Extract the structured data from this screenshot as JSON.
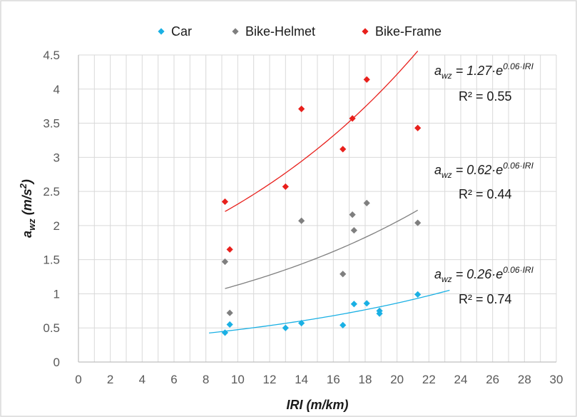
{
  "chart_data": {
    "type": "scatter",
    "xlabel": "IRI (m/km)",
    "ylabel": {
      "base": "a",
      "sub": "wz",
      "unit_open": " (m/s",
      "unit_sup": "2",
      "unit_close": ")"
    },
    "xlim": [
      0,
      30
    ],
    "ylim": [
      0,
      4.5
    ],
    "x_ticks": [
      "0",
      "2",
      "4",
      "6",
      "8",
      "10",
      "12",
      "14",
      "16",
      "18",
      "20",
      "22",
      "24",
      "26",
      "28",
      "30"
    ],
    "y_ticks": [
      "0",
      "0.5",
      "1",
      "1.5",
      "2",
      "2.5",
      "3",
      "3.5",
      "4",
      "4.5"
    ],
    "grid": true,
    "legend_position": "top",
    "series": [
      {
        "name": "Car",
        "color": "#1ab0e4",
        "points": [
          {
            "x": 9.2,
            "y": 0.43
          },
          {
            "x": 9.5,
            "y": 0.55
          },
          {
            "x": 13.0,
            "y": 0.5
          },
          {
            "x": 14.0,
            "y": 0.57
          },
          {
            "x": 16.6,
            "y": 0.54
          },
          {
            "x": 17.3,
            "y": 0.85
          },
          {
            "x": 18.1,
            "y": 0.86
          },
          {
            "x": 18.9,
            "y": 0.71
          },
          {
            "x": 18.9,
            "y": 0.75
          },
          {
            "x": 21.3,
            "y": 0.99
          }
        ],
        "trendline": {
          "a": 0.26,
          "b": 0.06,
          "x_start": 8.2,
          "x_end": 23.3,
          "equation": {
            "lhs": "a",
            "lhs_sub": "wz",
            "rhs": " = 0.26·e",
            "exp": "0.06·IRI"
          },
          "r2": "R² = 0.74"
        }
      },
      {
        "name": "Bike-Helmet",
        "color": "#7f7f7f",
        "points": [
          {
            "x": 9.2,
            "y": 1.47
          },
          {
            "x": 9.5,
            "y": 0.72
          },
          {
            "x": 14.0,
            "y": 2.07
          },
          {
            "x": 16.6,
            "y": 1.29
          },
          {
            "x": 17.2,
            "y": 2.16
          },
          {
            "x": 17.3,
            "y": 1.93
          },
          {
            "x": 18.1,
            "y": 2.33
          },
          {
            "x": 21.3,
            "y": 2.04
          }
        ],
        "trendline": {
          "a": 0.62,
          "b": 0.06,
          "x_start": 9.2,
          "x_end": 21.3,
          "equation": {
            "lhs": "a",
            "lhs_sub": "wz",
            "rhs": " = 0.62·e",
            "exp": "0.06·IRI"
          },
          "r2": "R² = 0.44"
        }
      },
      {
        "name": "Bike-Frame",
        "color": "#e8201c",
        "points": [
          {
            "x": 9.2,
            "y": 2.35
          },
          {
            "x": 9.5,
            "y": 1.65
          },
          {
            "x": 13.0,
            "y": 2.57
          },
          {
            "x": 14.0,
            "y": 3.71
          },
          {
            "x": 16.6,
            "y": 3.12
          },
          {
            "x": 17.2,
            "y": 3.57
          },
          {
            "x": 18.1,
            "y": 4.14
          },
          {
            "x": 21.3,
            "y": 3.43
          }
        ],
        "trendline": {
          "a": 1.27,
          "b": 0.06,
          "x_start": 9.2,
          "x_end": 21.3,
          "equation": {
            "lhs": "a",
            "lhs_sub": "wz",
            "rhs": " = 1.27·e",
            "exp": "0.06·IRI"
          },
          "r2": "R² = 0.55"
        }
      }
    ]
  }
}
